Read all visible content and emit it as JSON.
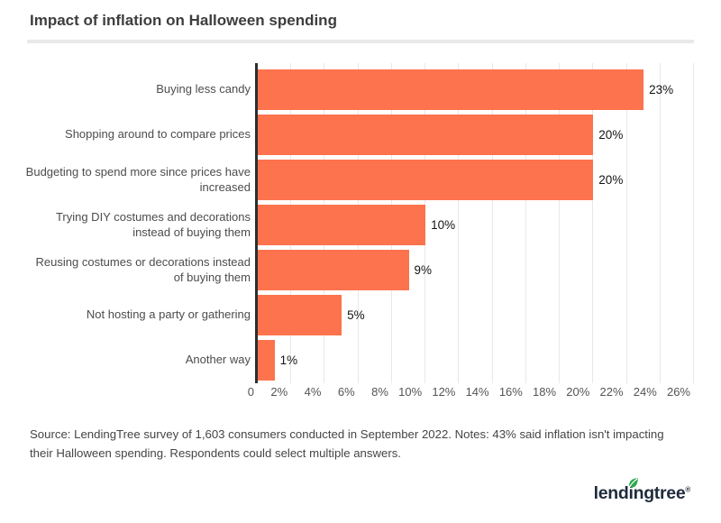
{
  "header": {
    "title": "Impact of inflation on Halloween spending"
  },
  "chart_data": {
    "type": "bar",
    "orientation": "horizontal",
    "title": "Impact of inflation on Halloween spending",
    "categories": [
      "Buying less candy",
      "Shopping around to compare prices",
      "Budgeting to spend more since prices have increased",
      "Trying DIY costumes and decorations instead of buying them",
      "Reusing costumes or decorations instead of buying them",
      "Not hosting a party or gathering",
      "Another way"
    ],
    "values": [
      23,
      20,
      20,
      10,
      9,
      5,
      1
    ],
    "value_labels": [
      "23%",
      "20%",
      "20%",
      "10%",
      "9%",
      "5%",
      "1%"
    ],
    "xlabel": "",
    "ylabel": "",
    "xlim": [
      0,
      26
    ],
    "x_ticks": [
      0,
      2,
      4,
      6,
      8,
      10,
      12,
      14,
      16,
      18,
      20,
      22,
      24,
      26
    ],
    "x_tick_labels": [
      "0",
      "2%",
      "4%",
      "6%",
      "8%",
      "10%",
      "12%",
      "14%",
      "16%",
      "18%",
      "20%",
      "22%",
      "24%",
      "26%"
    ],
    "grid": "vertical",
    "legend": "none",
    "bar_color": "#FC734D",
    "axis_color": "#2E2E2E",
    "gridline_color": "#E8E8E8"
  },
  "footer": {
    "source_note": "Source: LendingTree survey of 1,603 consumers conducted in September 2022. Notes: 43% said inflation isn't impacting their Halloween spending. Respondents could select multiple answers.",
    "logo_text": "lendingtree",
    "registered_mark": "®",
    "logo_color": "#1E2B3B",
    "leaf_color": "#2FA84F"
  }
}
